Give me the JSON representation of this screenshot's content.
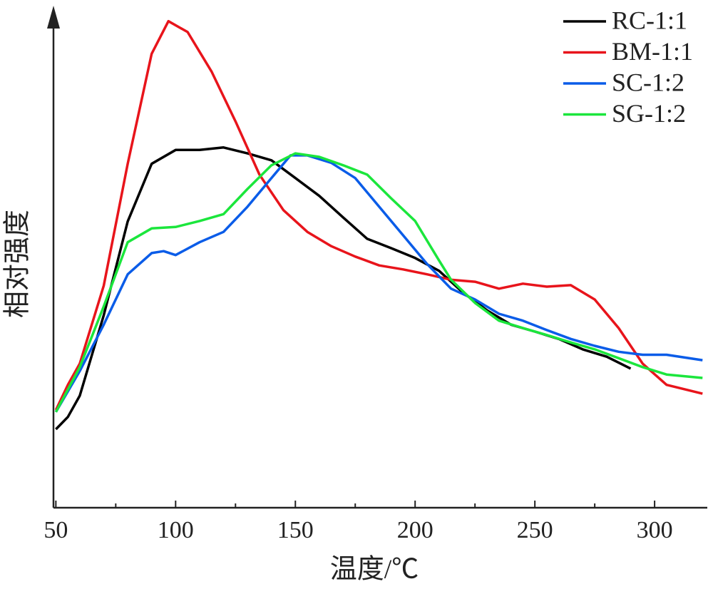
{
  "chart_data": {
    "type": "line",
    "xlabel": "温度/℃",
    "ylabel": "相对强度",
    "xlim": [
      49,
      322
    ],
    "ylim": [
      0,
      100
    ],
    "xticks": [
      50,
      100,
      150,
      200,
      250,
      300
    ],
    "xminorticks": [
      75,
      125,
      175,
      225,
      275
    ],
    "legend": "upper right",
    "series": [
      {
        "name": "RC-1:1",
        "color": "#000000",
        "x": [
          50,
          55,
          60,
          70,
          80,
          90,
          100,
          110,
          120,
          130,
          140,
          150,
          160,
          170,
          180,
          190,
          200,
          210,
          220,
          230,
          240,
          250,
          260,
          270,
          280,
          290
        ],
        "values": [
          15.9,
          18.4,
          22.7,
          39,
          58,
          69.7,
          72.5,
          72.5,
          73,
          71.8,
          70.4,
          66.8,
          63.2,
          58.8,
          54.5,
          52.6,
          50.6,
          48,
          43.6,
          40,
          37.1,
          35.7,
          34.2,
          32.1,
          30.6,
          28.2
        ]
      },
      {
        "name": "BM-1:1",
        "color": "#e8141b",
        "x": [
          50,
          55,
          60,
          70,
          80,
          90,
          97,
          105,
          115,
          125,
          135,
          145,
          155,
          165,
          175,
          185,
          195,
          205,
          215,
          225,
          235,
          245,
          255,
          265,
          275,
          285,
          295,
          305,
          320
        ],
        "values": [
          19.8,
          24.9,
          29.2,
          45,
          69.7,
          92,
          98.6,
          96.4,
          88.4,
          78.3,
          67.5,
          60.3,
          55.9,
          53,
          50.9,
          49.1,
          48.3,
          47.3,
          46.2,
          45.8,
          44.4,
          45.4,
          44.8,
          45.1,
          42.2,
          36.4,
          29.2,
          24.9,
          23.1
        ]
      },
      {
        "name": "SC-1:2",
        "color": "#0a5ce8",
        "x": [
          50,
          60,
          70,
          80,
          90,
          95,
          100,
          110,
          120,
          130,
          140,
          148,
          155,
          165,
          175,
          185,
          195,
          205,
          215,
          225,
          235,
          245,
          255,
          265,
          275,
          285,
          295,
          305,
          320
        ],
        "values": [
          19.4,
          27.7,
          37.1,
          47.3,
          51.6,
          52,
          51.2,
          53.8,
          55.9,
          61,
          66.8,
          71.4,
          71.4,
          69.9,
          66.8,
          61,
          55.2,
          49.4,
          44.4,
          42.2,
          39.3,
          37.9,
          36,
          34.2,
          32.8,
          31.6,
          31,
          31,
          29.9
        ]
      },
      {
        "name": "SG-1:2",
        "color": "#1be63c",
        "x": [
          50,
          60,
          70,
          80,
          90,
          100,
          110,
          120,
          130,
          140,
          150,
          160,
          170,
          180,
          190,
          200,
          210,
          215,
          225,
          235,
          245,
          255,
          265,
          275,
          285,
          295,
          305,
          320
        ],
        "values": [
          19.4,
          28.5,
          40.8,
          53.8,
          56.6,
          56.9,
          58.1,
          59.5,
          64.6,
          69.4,
          71.8,
          71.1,
          69.4,
          67.5,
          62.7,
          58.1,
          50.1,
          46.2,
          41.5,
          37.9,
          36.4,
          35,
          33.5,
          32.1,
          30.3,
          28.5,
          27,
          26.3
        ]
      }
    ]
  }
}
